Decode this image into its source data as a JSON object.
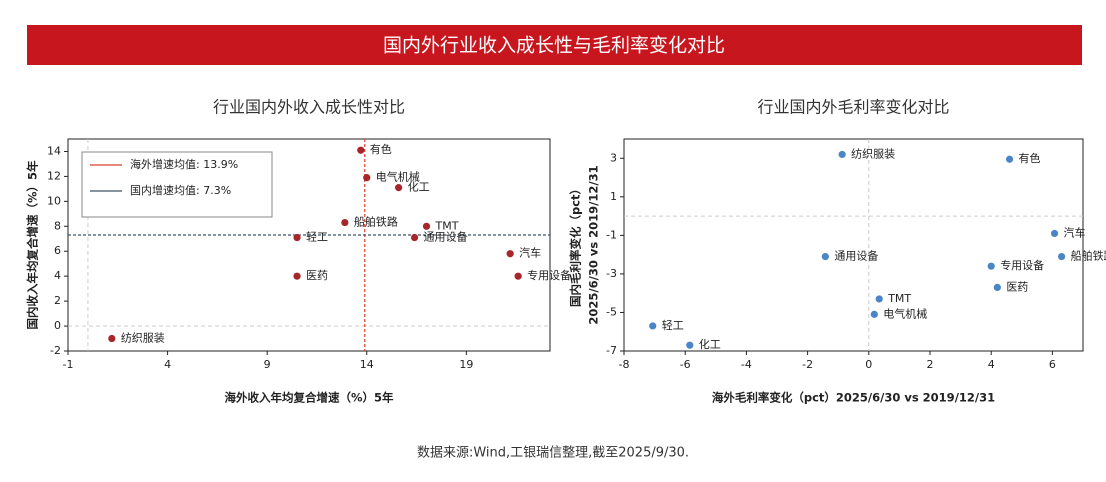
{
  "header": {
    "title": "国内外行业收入成长性与毛利率变化对比"
  },
  "source": "数据来源:Wind,工银瑞信整理,截至2025/9/30.",
  "chart_data": [
    {
      "type": "scatter",
      "title": "行业国内外收入成长性对比",
      "xlabel": "海外收入年均复合增速（%）5年",
      "ylabel": "国内收入年均复合增速（%）5年",
      "color": "#a8262b",
      "point_labels": [
        "有色",
        "电气机械",
        "化工",
        "船舶铁路",
        "TMT",
        "轻工",
        "通用设备",
        "汽车",
        "专用设备",
        "医药",
        "纺织服装"
      ],
      "x": [
        13.7,
        14.0,
        15.6,
        12.9,
        17.0,
        10.5,
        16.4,
        21.2,
        21.6,
        10.5,
        1.2
      ],
      "values": [
        14.1,
        11.9,
        11.1,
        8.3,
        8.0,
        7.1,
        7.1,
        5.8,
        4.0,
        4.0,
        -1.0
      ],
      "xlim": [
        -1,
        23.2
      ],
      "xticks": [
        -1,
        4,
        9,
        14,
        19
      ],
      "ylim": [
        -2,
        15
      ],
      "yticks": [
        -2,
        0,
        2,
        4,
        6,
        8,
        10,
        12,
        14
      ],
      "reference_lines": [
        {
          "axis": "x",
          "value": 13.9,
          "label": "海外增速均值: 13.9%",
          "color": "#d9412e"
        },
        {
          "axis": "y",
          "value": 7.3,
          "label": "国内增速均值: 7.3%",
          "color": "#3f5566"
        }
      ],
      "legend": "upper left"
    },
    {
      "type": "scatter",
      "title": "行业国内外毛利率变化对比",
      "xlabel": "海外毛利率变化（pct）2025/6/30 vs 2019/12/31",
      "ylabel": [
        "国内毛利率变化（pct）",
        "2025/6/30 vs 2019/12/31"
      ],
      "color": "#4a86c5",
      "point_labels": [
        "纺织服装",
        "有色",
        "汽车",
        "船舶铁路",
        "通用设备",
        "专用设备",
        "医药",
        "TMT",
        "电气机械",
        "轻工",
        "化工"
      ],
      "x": [
        -0.87,
        4.6,
        6.07,
        6.3,
        -1.42,
        4.0,
        4.2,
        0.34,
        0.18,
        -7.06,
        -5.85
      ],
      "values": [
        3.2,
        2.95,
        -0.9,
        -2.1,
        -2.1,
        -2.6,
        -3.7,
        -4.3,
        -5.1,
        -5.7,
        -6.7
      ],
      "xlim": [
        -8,
        7
      ],
      "xticks": [
        -8,
        -6,
        -4,
        -2,
        0,
        2,
        4,
        6
      ],
      "ylim": [
        -7,
        4
      ],
      "yticks": [
        -7,
        -5,
        -3,
        -1,
        1,
        3
      ]
    }
  ]
}
